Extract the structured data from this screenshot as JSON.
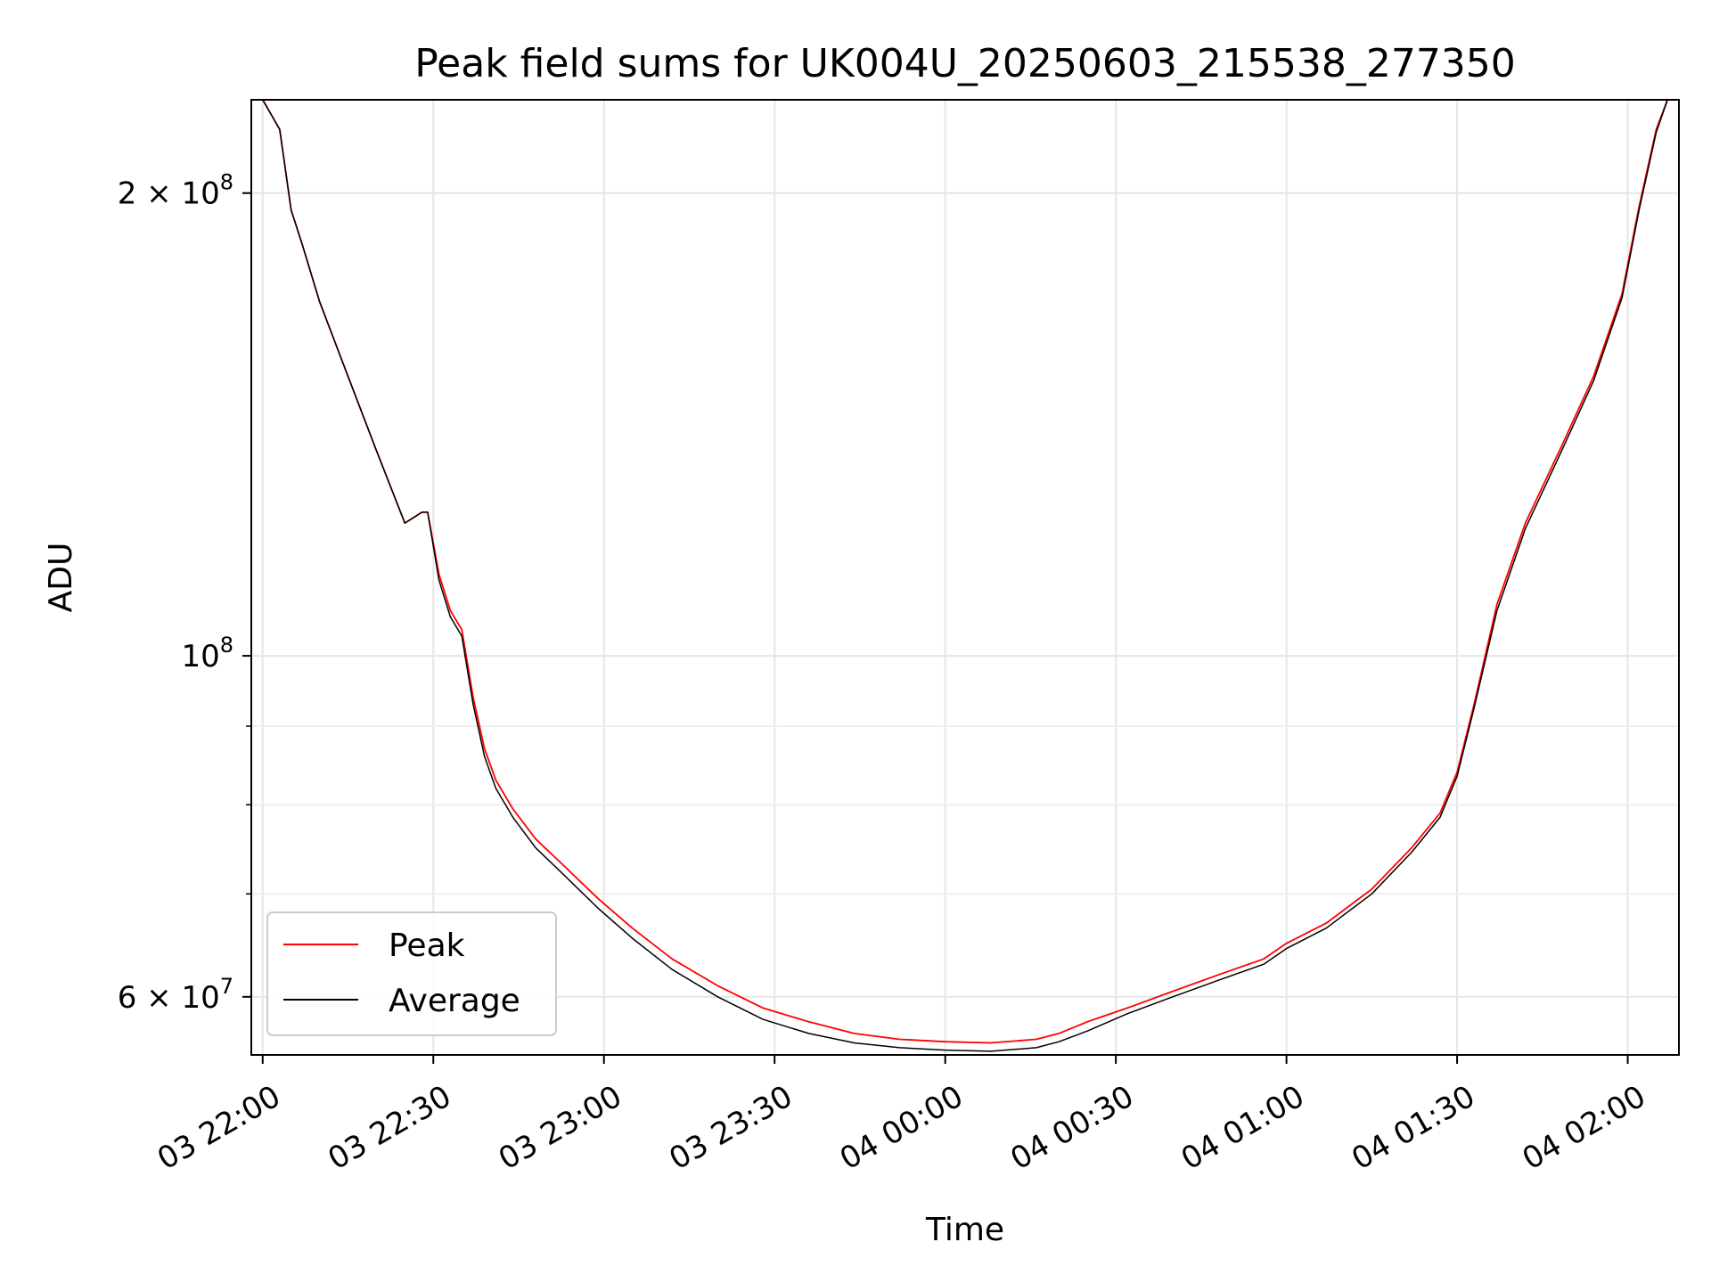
{
  "chart_data": {
    "type": "line",
    "title": "Peak field sums for UK004U_20250603_215538_277350",
    "xlabel": "Time",
    "ylabel": "ADU",
    "y_scale": "log",
    "grid": true,
    "legend_position": "lower-left",
    "xlim": [
      "2025-06-03 21:58",
      "2025-06-04 02:09"
    ],
    "ylim": [
      55000000,
      230000000
    ],
    "x_ticks": [
      {
        "value": "2025-06-03 22:00",
        "label": "03 22:00"
      },
      {
        "value": "2025-06-03 22:30",
        "label": "03 22:30"
      },
      {
        "value": "2025-06-03 23:00",
        "label": "03 23:00"
      },
      {
        "value": "2025-06-03 23:30",
        "label": "03 23:30"
      },
      {
        "value": "2025-06-04 00:00",
        "label": "04 00:00"
      },
      {
        "value": "2025-06-04 00:30",
        "label": "04 00:30"
      },
      {
        "value": "2025-06-04 01:00",
        "label": "04 01:00"
      },
      {
        "value": "2025-06-04 01:30",
        "label": "04 01:30"
      },
      {
        "value": "2025-06-04 02:00",
        "label": "04 02:00"
      }
    ],
    "y_ticks": [
      {
        "value": 60000000,
        "label": "6 × 10",
        "exp": "7"
      },
      {
        "value": 100000000,
        "label": "10",
        "exp": "8"
      },
      {
        "value": 200000000,
        "label": "2 × 10",
        "exp": "8"
      }
    ],
    "y_minor_ticks": [
      70000000,
      80000000,
      90000000
    ],
    "series": [
      {
        "name": "Peak",
        "color": "#ff0000",
        "x": [
          "2025-06-03 21:58",
          "2025-06-03 22:00",
          "2025-06-03 22:03",
          "2025-06-03 22:05",
          "2025-06-03 22:07",
          "2025-06-03 22:10",
          "2025-06-03 22:15",
          "2025-06-03 22:20",
          "2025-06-03 22:25",
          "2025-06-03 22:28",
          "2025-06-03 22:29",
          "2025-06-03 22:31",
          "2025-06-03 22:33",
          "2025-06-03 22:35",
          "2025-06-03 22:37",
          "2025-06-03 22:39",
          "2025-06-03 22:41",
          "2025-06-03 22:44",
          "2025-06-03 22:48",
          "2025-06-03 22:53",
          "2025-06-03 22:59",
          "2025-06-03 23:05",
          "2025-06-03 23:12",
          "2025-06-03 23:20",
          "2025-06-03 23:28",
          "2025-06-03 23:36",
          "2025-06-03 23:44",
          "2025-06-03 23:52",
          "2025-06-04 00:00",
          "2025-06-04 00:08",
          "2025-06-04 00:16",
          "2025-06-04 00:20",
          "2025-06-04 00:25",
          "2025-06-04 00:32",
          "2025-06-04 00:40",
          "2025-06-04 00:48",
          "2025-06-04 00:56",
          "2025-06-04 01:00",
          "2025-06-04 01:07",
          "2025-06-04 01:15",
          "2025-06-04 01:22",
          "2025-06-04 01:27",
          "2025-06-04 01:30",
          "2025-06-04 01:33",
          "2025-06-04 01:37",
          "2025-06-04 01:42",
          "2025-06-04 01:48",
          "2025-06-04 01:54",
          "2025-06-04 01:59",
          "2025-06-04 02:02",
          "2025-06-04 02:05",
          "2025-06-04 02:07",
          "2025-06-04 02:09"
        ],
        "y": [
          230000000,
          230000000,
          220000000,
          195000000,
          185000000,
          170000000,
          152000000,
          136000000,
          122000000,
          124000000,
          124000000,
          113000000,
          107000000,
          104000000,
          94000000,
          87000000,
          83000000,
          79500000,
          76000000,
          73000000,
          69500000,
          66500000,
          63500000,
          61000000,
          59000000,
          57800000,
          56800000,
          56300000,
          56100000,
          56000000,
          56300000,
          56800000,
          57800000,
          59000000,
          60500000,
          62000000,
          63500000,
          65000000,
          67000000,
          70500000,
          75000000,
          79000000,
          84000000,
          93000000,
          108000000,
          122000000,
          136000000,
          152000000,
          172000000,
          196000000,
          220000000,
          230000000,
          230000000
        ]
      },
      {
        "name": "Average",
        "color": "#000000",
        "x": [
          "2025-06-03 21:58",
          "2025-06-03 22:00",
          "2025-06-03 22:03",
          "2025-06-03 22:05",
          "2025-06-03 22:07",
          "2025-06-03 22:10",
          "2025-06-03 22:15",
          "2025-06-03 22:20",
          "2025-06-03 22:25",
          "2025-06-03 22:28",
          "2025-06-03 22:29",
          "2025-06-03 22:31",
          "2025-06-03 22:33",
          "2025-06-03 22:35",
          "2025-06-03 22:37",
          "2025-06-03 22:39",
          "2025-06-03 22:41",
          "2025-06-03 22:44",
          "2025-06-03 22:48",
          "2025-06-03 22:53",
          "2025-06-03 22:59",
          "2025-06-03 23:05",
          "2025-06-03 23:12",
          "2025-06-03 23:20",
          "2025-06-03 23:28",
          "2025-06-03 23:36",
          "2025-06-03 23:44",
          "2025-06-03 23:52",
          "2025-06-04 00:00",
          "2025-06-04 00:08",
          "2025-06-04 00:16",
          "2025-06-04 00:20",
          "2025-06-04 00:25",
          "2025-06-04 00:32",
          "2025-06-04 00:40",
          "2025-06-04 00:48",
          "2025-06-04 00:56",
          "2025-06-04 01:00",
          "2025-06-04 01:07",
          "2025-06-04 01:15",
          "2025-06-04 01:22",
          "2025-06-04 01:27",
          "2025-06-04 01:30",
          "2025-06-04 01:33",
          "2025-06-04 01:37",
          "2025-06-04 01:42",
          "2025-06-04 01:48",
          "2025-06-04 01:54",
          "2025-06-04 01:59",
          "2025-06-04 02:02",
          "2025-06-04 02:05",
          "2025-06-04 02:07",
          "2025-06-04 02:09"
        ],
        "y": [
          230000000,
          230000000,
          220000000,
          195000000,
          185000000,
          170000000,
          152000000,
          136000000,
          122000000,
          124000000,
          124000000,
          112000000,
          106000000,
          103000000,
          93000000,
          86000000,
          82000000,
          78500000,
          75000000,
          72000000,
          68500000,
          65500000,
          62500000,
          60000000,
          58000000,
          56800000,
          56000000,
          55600000,
          55400000,
          55300000,
          55600000,
          56100000,
          57000000,
          58500000,
          60000000,
          61500000,
          63000000,
          64500000,
          66500000,
          70000000,
          74500000,
          78500000,
          83500000,
          92500000,
          107000000,
          121000000,
          135000000,
          151000000,
          171000000,
          195000000,
          219000000,
          230000000,
          230000000
        ]
      }
    ]
  }
}
